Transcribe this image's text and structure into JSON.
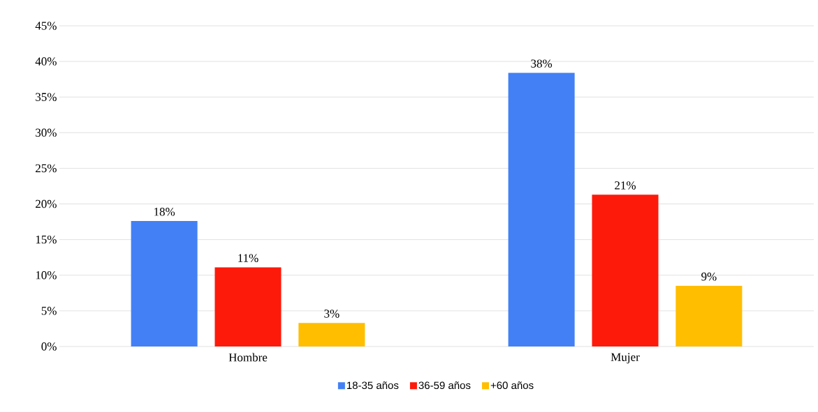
{
  "chart_data": {
    "type": "bar",
    "categories": [
      "Hombre",
      "Mujer"
    ],
    "series": [
      {
        "name": "18-35 años",
        "color": "#4380f5",
        "values": [
          17.6,
          38.4
        ],
        "value_labels": [
          "18%",
          "38%"
        ]
      },
      {
        "name": "36-59 años",
        "color": "#fe1a0b",
        "values": [
          11.1,
          21.3
        ],
        "value_labels": [
          "11%",
          "21%"
        ]
      },
      {
        "name": "+60 años",
        "color": "#ffbe00",
        "values": [
          3.3,
          8.5
        ],
        "value_labels": [
          "3%",
          "9%"
        ]
      }
    ],
    "ylim": [
      0,
      45
    ],
    "yticks": [
      {
        "value": 0,
        "label": "0%"
      },
      {
        "value": 5,
        "label": "5%"
      },
      {
        "value": 10,
        "label": "10%"
      },
      {
        "value": 15,
        "label": "15%"
      },
      {
        "value": 20,
        "label": "20%"
      },
      {
        "value": 25,
        "label": "25%"
      },
      {
        "value": 30,
        "label": "30%"
      },
      {
        "value": 35,
        "label": "35%"
      },
      {
        "value": 40,
        "label": "40%"
      },
      {
        "value": 45,
        "label": "45%"
      }
    ],
    "grid": "y",
    "legend": "bottom"
  }
}
